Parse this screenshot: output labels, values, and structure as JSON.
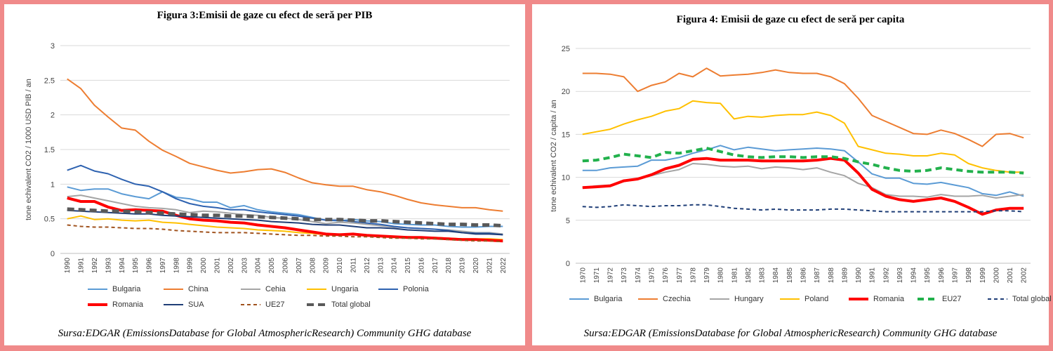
{
  "chart_data": [
    {
      "type": "line",
      "title": "Figura 3:Emisii de gaze cu efect de seră per PIB",
      "ylabel": "tone echivalent CO2 / 1000 USD PIB / an",
      "xlabel": "",
      "ylim": [
        0,
        3
      ],
      "yticks": [
        "0",
        "0.5",
        "1",
        "1.5",
        "2",
        "2.5",
        "3"
      ],
      "grid": true,
      "legend": "bottom",
      "source": "Sursa:EDGAR (EmissionsDatabase for Global AtmosphericResearch) Community GHG database",
      "x": [
        "1990",
        "1991",
        "1992",
        "1993",
        "1994",
        "1995",
        "1996",
        "1997",
        "1998",
        "1999",
        "2000",
        "2001",
        "2002",
        "2003",
        "2004",
        "2005",
        "2006",
        "2007",
        "2008",
        "2009",
        "2010",
        "2011",
        "2012",
        "2013",
        "2014",
        "2015",
        "2016",
        "2017",
        "2018",
        "2019",
        "2020",
        "2021",
        "2022"
      ],
      "series": [
        {
          "name": "Bulgaria",
          "color": "#5b9bd5",
          "width": 2,
          "dash": "",
          "values": [
            0.96,
            0.91,
            0.93,
            0.93,
            0.86,
            0.82,
            0.79,
            0.89,
            0.81,
            0.79,
            0.74,
            0.74,
            0.66,
            0.69,
            0.63,
            0.6,
            0.58,
            0.56,
            0.52,
            0.48,
            0.47,
            0.49,
            0.47,
            0.46,
            0.43,
            0.42,
            0.41,
            0.41,
            0.39,
            0.38,
            0.38,
            0.39,
            0.39
          ]
        },
        {
          "name": "China",
          "color": "#ed7d31",
          "width": 2,
          "dash": "",
          "values": [
            2.52,
            2.38,
            2.14,
            1.97,
            1.81,
            1.78,
            1.62,
            1.49,
            1.4,
            1.3,
            1.25,
            1.2,
            1.16,
            1.18,
            1.21,
            1.22,
            1.17,
            1.09,
            1.02,
            0.99,
            0.97,
            0.97,
            0.92,
            0.89,
            0.84,
            0.78,
            0.73,
            0.7,
            0.68,
            0.66,
            0.66,
            0.63,
            0.61
          ]
        },
        {
          "name": "Cehia",
          "color": "#a5a5a5",
          "width": 2,
          "dash": "",
          "values": [
            0.82,
            0.84,
            0.8,
            0.76,
            0.72,
            0.68,
            0.66,
            0.65,
            0.63,
            0.59,
            0.61,
            0.6,
            0.58,
            0.56,
            0.55,
            0.52,
            0.51,
            0.49,
            0.46,
            0.43,
            0.45,
            0.44,
            0.42,
            0.4,
            0.38,
            0.37,
            0.36,
            0.35,
            0.34,
            0.32,
            0.3,
            0.3,
            0.28
          ]
        },
        {
          "name": "Ungaria",
          "color": "#ffc000",
          "width": 2,
          "dash": "",
          "values": [
            0.5,
            0.54,
            0.49,
            0.5,
            0.48,
            0.47,
            0.48,
            0.45,
            0.44,
            0.42,
            0.4,
            0.38,
            0.37,
            0.36,
            0.34,
            0.33,
            0.32,
            0.3,
            0.29,
            0.27,
            0.28,
            0.27,
            0.26,
            0.25,
            0.24,
            0.24,
            0.23,
            0.23,
            0.22,
            0.21,
            0.21,
            0.21,
            0.2
          ]
        },
        {
          "name": "Polonia",
          "color": "#2e62b0",
          "width": 2,
          "dash": "",
          "values": [
            1.2,
            1.27,
            1.19,
            1.15,
            1.07,
            1.0,
            0.97,
            0.89,
            0.79,
            0.72,
            0.68,
            0.66,
            0.63,
            0.63,
            0.6,
            0.58,
            0.56,
            0.54,
            0.51,
            0.48,
            0.48,
            0.46,
            0.44,
            0.42,
            0.39,
            0.37,
            0.36,
            0.35,
            0.33,
            0.3,
            0.29,
            0.29,
            0.27
          ]
        },
        {
          "name": "Romania",
          "color": "#ff0000",
          "width": 4,
          "dash": "",
          "values": [
            0.8,
            0.75,
            0.75,
            0.67,
            0.62,
            0.63,
            0.62,
            0.61,
            0.55,
            0.5,
            0.48,
            0.47,
            0.45,
            0.44,
            0.41,
            0.39,
            0.37,
            0.34,
            0.31,
            0.28,
            0.27,
            0.28,
            0.26,
            0.25,
            0.24,
            0.23,
            0.23,
            0.22,
            0.21,
            0.2,
            0.2,
            0.19,
            0.18
          ]
        },
        {
          "name": "SUA",
          "color": "#1f3e77",
          "width": 2,
          "dash": "",
          "values": [
            0.62,
            0.61,
            0.6,
            0.59,
            0.58,
            0.57,
            0.57,
            0.55,
            0.54,
            0.53,
            0.52,
            0.51,
            0.5,
            0.49,
            0.48,
            0.46,
            0.45,
            0.44,
            0.42,
            0.41,
            0.41,
            0.39,
            0.37,
            0.37,
            0.36,
            0.34,
            0.33,
            0.32,
            0.32,
            0.3,
            0.28,
            0.28,
            0.27
          ]
        },
        {
          "name": "UE27",
          "color": "#a0521d",
          "width": 2,
          "dash": "5,4",
          "values": [
            0.41,
            0.39,
            0.38,
            0.38,
            0.37,
            0.36,
            0.36,
            0.35,
            0.33,
            0.32,
            0.31,
            0.3,
            0.3,
            0.3,
            0.29,
            0.28,
            0.27,
            0.26,
            0.26,
            0.25,
            0.25,
            0.24,
            0.24,
            0.23,
            0.22,
            0.22,
            0.21,
            0.21,
            0.2,
            0.19,
            0.18,
            0.18,
            0.17
          ]
        },
        {
          "name": "Total global",
          "color": "#595959",
          "width": 5,
          "dash": "10,6",
          "values": [
            0.64,
            0.63,
            0.62,
            0.61,
            0.61,
            0.6,
            0.59,
            0.58,
            0.57,
            0.56,
            0.55,
            0.55,
            0.54,
            0.54,
            0.53,
            0.52,
            0.51,
            0.5,
            0.49,
            0.49,
            0.49,
            0.48,
            0.47,
            0.47,
            0.46,
            0.45,
            0.44,
            0.43,
            0.42,
            0.42,
            0.41,
            0.41,
            0.4
          ]
        }
      ]
    },
    {
      "type": "line",
      "title": "Figura 4: Emisii de gaze cu efect de seră per capita",
      "ylabel": "tone echivalent CO2 / capita / an",
      "xlabel": "",
      "ylim": [
        0,
        25
      ],
      "yticks": [
        "0",
        "5",
        "10",
        "15",
        "20",
        "25"
      ],
      "grid": true,
      "legend": "bottom",
      "source": "Sursa:EDGAR (EmissionsDatabase for Global AtmosphericResearch) Community GHG database",
      "x": [
        "1970",
        "1971",
        "1972",
        "1973",
        "1974",
        "1975",
        "1976",
        "1977",
        "1978",
        "1979",
        "1980",
        "1981",
        "1982",
        "1983",
        "1984",
        "1985",
        "1986",
        "1987",
        "1988",
        "1989",
        "1990",
        "1991",
        "1992",
        "1993",
        "1994",
        "1995",
        "1996",
        "1997",
        "1998",
        "1999",
        "2000",
        "2001",
        "2002"
      ],
      "series": [
        {
          "name": "Bulgaria",
          "color": "#5b9bd5",
          "width": 2,
          "dash": "",
          "values": [
            10.8,
            10.8,
            11.1,
            11.2,
            11.3,
            12.0,
            12.0,
            12.3,
            12.8,
            13.2,
            13.7,
            13.2,
            13.5,
            13.3,
            13.1,
            13.2,
            13.3,
            13.4,
            13.3,
            13.1,
            11.8,
            10.4,
            9.9,
            9.9,
            9.3,
            9.2,
            9.4,
            9.1,
            8.8,
            8.1,
            7.9,
            8.3,
            7.8
          ]
        },
        {
          "name": "Czechia",
          "color": "#ed7d31",
          "width": 2,
          "dash": "",
          "values": [
            22.1,
            22.1,
            22.0,
            21.7,
            20.0,
            20.7,
            21.1,
            22.1,
            21.7,
            22.7,
            21.8,
            21.9,
            22.0,
            22.2,
            22.5,
            22.2,
            22.1,
            22.1,
            21.7,
            20.9,
            19.2,
            17.2,
            16.5,
            15.8,
            15.1,
            15.0,
            15.5,
            15.1,
            14.4,
            13.6,
            15.0,
            15.1,
            14.6
          ]
        },
        {
          "name": "Hungary",
          "color": "#a5a5a5",
          "width": 2,
          "dash": "",
          "values": [
            8.8,
            9.0,
            9.1,
            9.5,
            9.8,
            10.2,
            10.6,
            10.9,
            11.6,
            11.5,
            11.3,
            11.2,
            11.3,
            11.0,
            11.2,
            11.1,
            10.9,
            11.1,
            10.6,
            10.2,
            9.3,
            8.8,
            8.0,
            7.8,
            7.8,
            7.7,
            8.0,
            7.8,
            7.8,
            7.9,
            7.6,
            7.8,
            8.0
          ]
        },
        {
          "name": "Poland",
          "color": "#ffc000",
          "width": 2,
          "dash": "",
          "values": [
            15.0,
            15.3,
            15.6,
            16.2,
            16.7,
            17.1,
            17.7,
            18.0,
            18.9,
            18.7,
            18.6,
            16.8,
            17.1,
            17.0,
            17.2,
            17.3,
            17.3,
            17.6,
            17.2,
            16.3,
            13.6,
            13.2,
            12.8,
            12.7,
            12.5,
            12.5,
            12.8,
            12.6,
            11.6,
            11.1,
            10.8,
            10.6,
            10.6
          ]
        },
        {
          "name": "Romania",
          "color": "#ff0000",
          "width": 4,
          "dash": "",
          "values": [
            8.8,
            8.9,
            9.0,
            9.6,
            9.8,
            10.3,
            11.0,
            11.4,
            12.1,
            12.2,
            12.0,
            12.0,
            12.0,
            11.9,
            11.9,
            11.9,
            11.9,
            12.0,
            12.2,
            12.0,
            10.5,
            8.6,
            7.8,
            7.4,
            7.2,
            7.4,
            7.6,
            7.2,
            6.5,
            5.7,
            6.2,
            6.4,
            6.4
          ]
        },
        {
          "name": "EU27",
          "color": "#22b14c",
          "width": 4,
          "dash": "9,6",
          "values": [
            11.9,
            12.0,
            12.3,
            12.7,
            12.5,
            12.3,
            12.9,
            12.8,
            13.1,
            13.4,
            13.0,
            12.6,
            12.4,
            12.3,
            12.4,
            12.4,
            12.3,
            12.4,
            12.4,
            12.2,
            11.8,
            11.5,
            11.1,
            10.8,
            10.7,
            10.8,
            11.1,
            10.9,
            10.7,
            10.6,
            10.6,
            10.6,
            10.5
          ]
        },
        {
          "name": "Total global",
          "color": "#1f3e77",
          "width": 2,
          "dash": "5,4",
          "values": [
            6.6,
            6.5,
            6.6,
            6.8,
            6.7,
            6.6,
            6.7,
            6.7,
            6.8,
            6.8,
            6.6,
            6.4,
            6.3,
            6.2,
            6.3,
            6.2,
            6.2,
            6.2,
            6.3,
            6.3,
            6.2,
            6.1,
            6.0,
            6.0,
            6.0,
            6.0,
            6.0,
            6.0,
            6.0,
            6.0,
            6.1,
            6.1,
            6.0
          ]
        }
      ]
    }
  ]
}
